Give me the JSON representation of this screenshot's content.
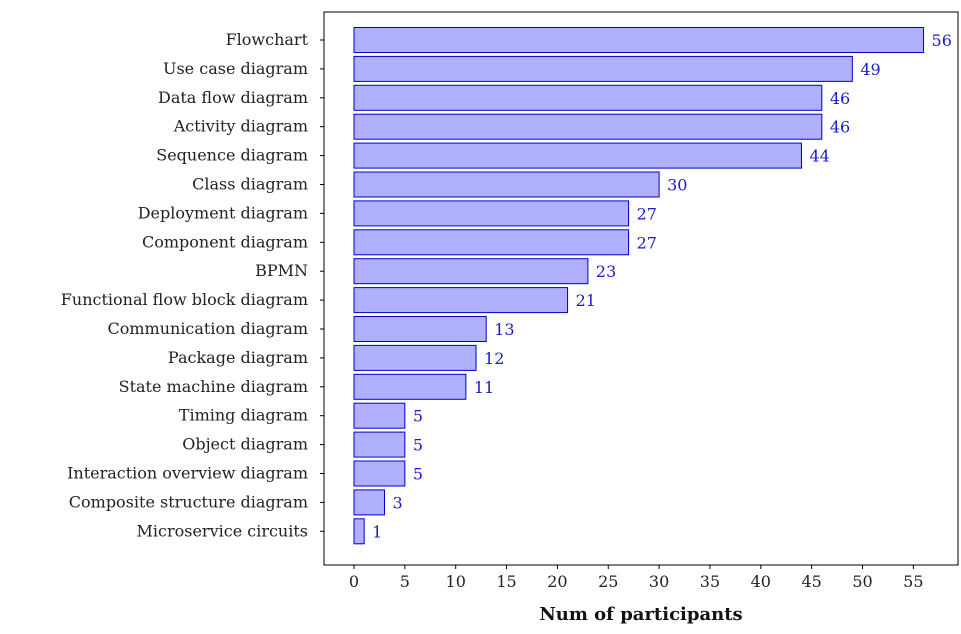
{
  "chart_data": {
    "type": "bar",
    "orientation": "horizontal",
    "title": "",
    "xlabel": "Num of participants",
    "ylabel": "",
    "categories": [
      "Flowchart",
      "Use case diagram",
      "Data flow diagram",
      "Activity diagram",
      "Sequence diagram",
      "Class diagram",
      "Deployment diagram",
      "Component diagram",
      "BPMN",
      "Functional flow block diagram",
      "Communication diagram",
      "Package diagram",
      "State machine diagram",
      "Timing diagram",
      "Object diagram",
      "Interaction overview diagram",
      "Composite structure diagram",
      "Microservice circuits"
    ],
    "values": [
      56,
      49,
      46,
      46,
      44,
      30,
      27,
      27,
      23,
      21,
      13,
      12,
      11,
      5,
      5,
      5,
      3,
      1
    ],
    "xlim": [
      -3,
      60
    ],
    "xticks": [
      0,
      5,
      10,
      15,
      20,
      25,
      30,
      35,
      40,
      45,
      50,
      55
    ],
    "grid": false,
    "legend": "none",
    "colors": {
      "bar_fill": "#b0b0ff",
      "bar_stroke": "#0000cc",
      "value_label": "#1a1acc",
      "axis": "#000000"
    }
  }
}
